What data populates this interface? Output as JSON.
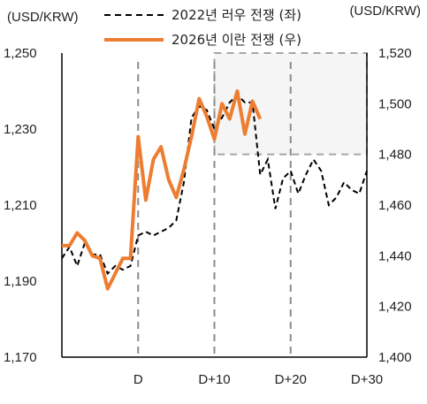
{
  "chart_data": {
    "type": "line",
    "left_unit": "(USD/KRW)",
    "right_unit": "(USD/KRW)",
    "x_ticks": [
      {
        "label": "D",
        "x": 0
      },
      {
        "label": "D+10",
        "x": 10
      },
      {
        "label": "D+20",
        "x": 20
      },
      {
        "label": "D+30",
        "x": 30
      }
    ],
    "xlim": [
      -10,
      30
    ],
    "y_left": {
      "ticks": [
        "1,250",
        "1,230",
        "1,210",
        "1,190",
        "1,170"
      ],
      "values": [
        1250,
        1230,
        1210,
        1190,
        1170
      ],
      "ylim": [
        1170,
        1250
      ]
    },
    "y_right": {
      "ticks": [
        "1,520",
        "1,500",
        "1,480",
        "1,460",
        "1,440",
        "1,420",
        "1,400"
      ],
      "values": [
        1520,
        1500,
        1480,
        1460,
        1440,
        1420,
        1400
      ],
      "ylim": [
        1400,
        1520
      ]
    },
    "highlight_box": {
      "x": [
        10,
        30
      ],
      "y_right": [
        1480,
        1520
      ]
    },
    "series": [
      {
        "name": "2022년 러우 전쟁 (좌)",
        "axis": "left",
        "style": "dashed",
        "color": "#000000",
        "x": [
          -10,
          -9,
          -8,
          -7,
          -6,
          -5,
          -4,
          -3,
          -2,
          -1,
          0,
          1,
          2,
          3,
          4,
          5,
          6,
          7,
          8,
          9,
          10,
          11,
          12,
          13,
          14,
          15,
          16,
          17,
          18,
          19,
          20,
          21,
          22,
          23,
          24,
          25,
          26,
          27,
          28,
          29,
          30
        ],
        "values": [
          1196,
          1199,
          1194,
          1200,
          1197,
          1197,
          1192,
          1194,
          1193,
          1194,
          1202,
          1203,
          1202,
          1203,
          1204,
          1206,
          1216,
          1233,
          1236,
          1235,
          1230,
          1233,
          1237,
          1239,
          1237,
          1237,
          1218,
          1222,
          1209,
          1217,
          1219,
          1213,
          1218,
          1222,
          1219,
          1210,
          1212,
          1216,
          1214,
          1213,
          1219
        ]
      },
      {
        "name": "2026년 이란 전쟁 (우)",
        "axis": "right",
        "style": "solid",
        "color": "#ED7D31",
        "x": [
          -10,
          -9,
          -8,
          -7,
          -6,
          -5,
          -4,
          -3,
          -2,
          -1,
          0,
          1,
          2,
          3,
          4,
          5,
          6,
          7,
          8,
          9,
          10,
          11,
          12,
          13,
          14,
          15,
          16
        ],
        "values": [
          1444,
          1444,
          1449,
          1446,
          1440,
          1439,
          1427,
          1433,
          1439,
          1439,
          1487,
          1462,
          1478,
          1483,
          1470,
          1463,
          1474,
          1487,
          1502,
          1495,
          1486,
          1500,
          1494,
          1505,
          1488,
          1501,
          1494
        ]
      }
    ]
  }
}
